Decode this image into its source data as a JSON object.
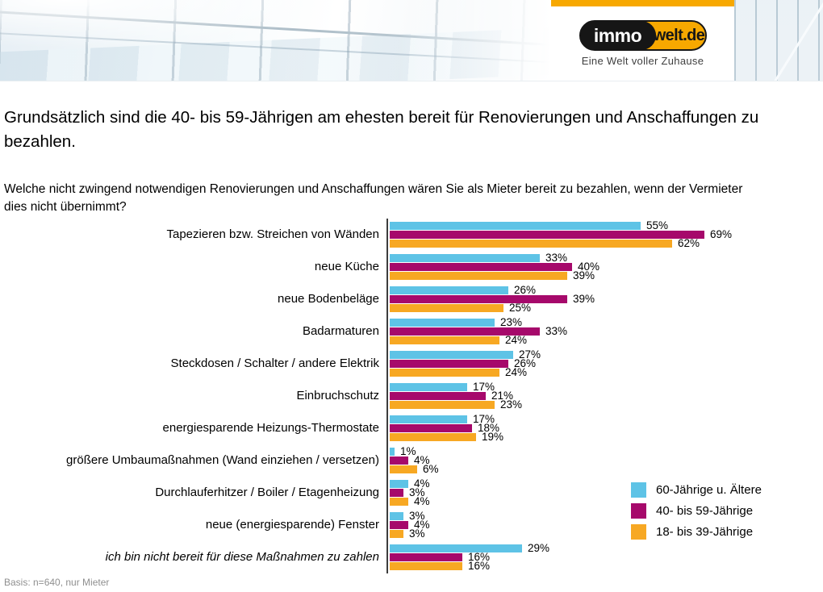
{
  "header": {
    "accent_color": "#F7A800",
    "logo": {
      "part1": "immo",
      "part2": "welt.de",
      "tagline": "Eine Welt voller Zuhause"
    }
  },
  "title": "Grundsätzlich sind die 40- bis 59-Jährigen am ehesten bereit für Renovierungen und Anschaffungen zu bezahlen.",
  "question": "Welche nicht zwingend notwendigen Renovierungen und Anschaffungen wären Sie als Mieter bereit zu bezahlen, wenn der Vermieter dies nicht übernimmt?",
  "footer": "Basis: n=640, nur Mieter",
  "chart_data": {
    "type": "bar",
    "orientation": "horizontal",
    "title": "Welche nicht zwingend notwendigen Renovierungen und Anschaffungen wären Sie als Mieter bereit zu bezahlen, wenn der Vermieter dies nicht übernimmt?",
    "categories": [
      "Tapezieren bzw. Streichen von Wänden",
      "neue Küche",
      "neue Bodenbeläge",
      "Badarmaturen",
      "Steckdosen / Schalter / andere Elektrik",
      "Einbruchschutz",
      "energiesparende Heizungs-Thermostate",
      "größere Umbaumaßnahmen (Wand einziehen / versetzen)",
      "Durchlauferhitzer / Boiler / Etagenheizung",
      "neue (energiesparende) Fenster",
      "ich bin nicht bereit für diese Maßnahmen zu zahlen"
    ],
    "series": [
      {
        "name": "60-Jährige u. Ältere",
        "color": "#5EC3E6",
        "values": [
          55,
          33,
          26,
          23,
          27,
          17,
          17,
          1,
          4,
          3,
          29
        ]
      },
      {
        "name": "40- bis 59-Jährige",
        "color": "#A6096B",
        "values": [
          69,
          40,
          39,
          33,
          26,
          21,
          18,
          4,
          3,
          4,
          16
        ]
      },
      {
        "name": "18- bis 39-Jährige",
        "color": "#F7A823",
        "values": [
          62,
          39,
          25,
          24,
          24,
          23,
          19,
          6,
          4,
          3,
          16
        ]
      }
    ],
    "value_suffix": "%",
    "value_labels": true,
    "grid": false,
    "xlim": [
      0,
      95
    ],
    "legend_position": "bottom-right",
    "last_category_italic": true,
    "footnote": "Basis: n=640, nur Mieter"
  }
}
